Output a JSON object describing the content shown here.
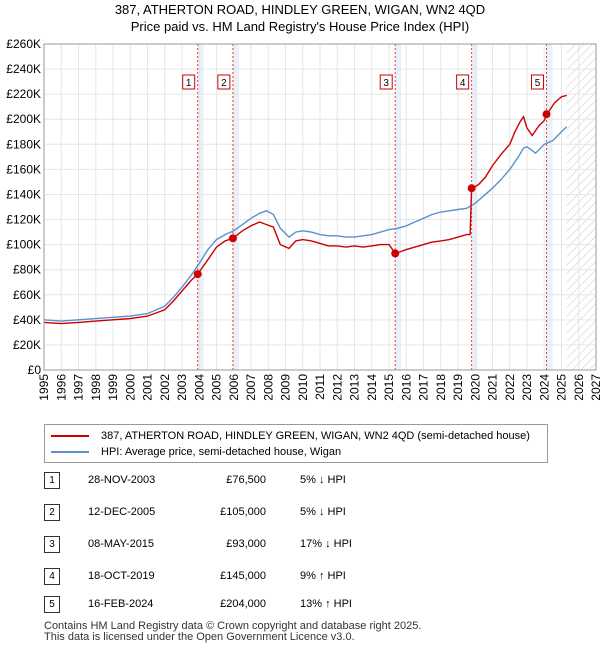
{
  "title_line1": "387, ATHERTON ROAD, HINDLEY GREEN, WIGAN, WN2 4QD",
  "title_line2": "Price paid vs. HM Land Registry's House Price Index (HPI)",
  "chart_data": {
    "type": "line",
    "x_range": [
      1995,
      2027
    ],
    "ylim": [
      0,
      260000
    ],
    "y_ticks": [
      0,
      20000,
      40000,
      60000,
      80000,
      100000,
      120000,
      140000,
      160000,
      180000,
      200000,
      220000,
      240000,
      260000
    ],
    "y_tick_labels": [
      "£0",
      "£20K",
      "£40K",
      "£60K",
      "£80K",
      "£100K",
      "£120K",
      "£140K",
      "£160K",
      "£180K",
      "£200K",
      "£220K",
      "£240K",
      "£260K"
    ],
    "x_ticks": [
      1995,
      1996,
      1997,
      1998,
      1999,
      2000,
      2001,
      2002,
      2003,
      2004,
      2005,
      2006,
      2007,
      2008,
      2009,
      2010,
      2011,
      2012,
      2013,
      2014,
      2015,
      2016,
      2017,
      2018,
      2019,
      2020,
      2021,
      2022,
      2023,
      2024,
      2025,
      2026,
      2027
    ],
    "forecast_start": 2025.3,
    "colors": {
      "property": "#cc0000",
      "hpi": "#5b8fd0",
      "shade": "#e8eef8",
      "marker_line": "#dd4444"
    },
    "series": [
      {
        "name": "387, ATHERTON ROAD, HINDLEY GREEN, WIGAN, WN2 4QD (semi-detached house)",
        "x": [
          1995.0,
          1996.0,
          1997.0,
          1998.0,
          1999.0,
          2000.0,
          2001.0,
          2002.0,
          2002.5,
          2003.0,
          2003.5,
          2003.91,
          2004.5,
          2005.0,
          2005.5,
          2005.95,
          2006.5,
          2007.0,
          2007.5,
          2007.9,
          2008.3,
          2008.7,
          2009.2,
          2009.6,
          2010.0,
          2010.5,
          2011.0,
          2011.5,
          2012.0,
          2012.5,
          2013.0,
          2013.5,
          2014.0,
          2014.5,
          2015.0,
          2015.36,
          2015.6,
          2016.0,
          2016.5,
          2017.0,
          2017.5,
          2018.0,
          2018.5,
          2019.0,
          2019.5,
          2019.7,
          2019.79,
          2019.85,
          2020.2,
          2020.6,
          2021.0,
          2021.5,
          2022.0,
          2022.3,
          2022.6,
          2022.8,
          2023.0,
          2023.3,
          2023.7,
          2024.0,
          2024.13,
          2024.3,
          2024.6,
          2025.0,
          2025.3
        ],
        "y": [
          38000,
          37000,
          38000,
          39000,
          40000,
          41000,
          43000,
          48000,
          55000,
          63000,
          71000,
          76500,
          88000,
          98000,
          103000,
          105000,
          111000,
          115000,
          118000,
          116000,
          114000,
          100000,
          97000,
          103000,
          104000,
          103000,
          101000,
          99000,
          99000,
          98000,
          99000,
          98000,
          99000,
          100000,
          100000,
          93000,
          94000,
          96000,
          98000,
          100000,
          102000,
          103000,
          104000,
          106000,
          108000,
          108000,
          145000,
          145000,
          148000,
          154000,
          163000,
          172000,
          180000,
          190000,
          198000,
          202000,
          193000,
          187000,
          195000,
          199000,
          204000,
          207000,
          213000,
          218000,
          219000
        ]
      },
      {
        "name": "HPI: Average price, semi-detached house, Wigan",
        "x": [
          1995.0,
          1996.0,
          1997.0,
          1998.0,
          1999.0,
          2000.0,
          2001.0,
          2002.0,
          2002.5,
          2003.0,
          2003.5,
          2004.0,
          2004.5,
          2005.0,
          2005.5,
          2006.0,
          2006.5,
          2007.0,
          2007.5,
          2007.9,
          2008.3,
          2008.7,
          2009.2,
          2009.6,
          2010.0,
          2010.5,
          2011.0,
          2011.5,
          2012.0,
          2012.5,
          2013.0,
          2013.5,
          2014.0,
          2014.5,
          2015.0,
          2015.5,
          2016.0,
          2016.5,
          2017.0,
          2017.5,
          2018.0,
          2018.5,
          2019.0,
          2019.5,
          2020.0,
          2020.5,
          2021.0,
          2021.5,
          2022.0,
          2022.5,
          2022.8,
          2023.0,
          2023.5,
          2024.0,
          2024.5,
          2025.0,
          2025.3
        ],
        "y": [
          40000,
          39000,
          40000,
          41000,
          42000,
          43000,
          45000,
          51000,
          58000,
          66000,
          75000,
          85000,
          96000,
          104000,
          108000,
          111000,
          116000,
          121000,
          125000,
          127000,
          124000,
          113000,
          106000,
          110000,
          111000,
          110000,
          108000,
          107000,
          107000,
          106000,
          106000,
          107000,
          108000,
          110000,
          112000,
          113000,
          115000,
          118000,
          121000,
          124000,
          126000,
          127000,
          128000,
          129000,
          133000,
          139000,
          145000,
          152000,
          160000,
          170000,
          177000,
          178000,
          173000,
          180000,
          183000,
          190000,
          194000
        ]
      }
    ],
    "transactions": [
      {
        "label": "1",
        "x": 2003.91,
        "y": 76500
      },
      {
        "label": "2",
        "x": 2005.95,
        "y": 105000
      },
      {
        "label": "3",
        "x": 2015.36,
        "y": 93000
      },
      {
        "label": "4",
        "x": 2019.79,
        "y": 145000
      },
      {
        "label": "5",
        "x": 2024.13,
        "y": 204000
      }
    ]
  },
  "legend": {
    "property_label": "387, ATHERTON ROAD, HINDLEY GREEN, WIGAN, WN2 4QD (semi-detached house)",
    "hpi_label": "HPI: Average price, semi-detached house, Wigan"
  },
  "sales": [
    {
      "num": "1",
      "date": "28-NOV-2003",
      "price": "£76,500",
      "hpi": "5% ↓ HPI"
    },
    {
      "num": "2",
      "date": "12-DEC-2005",
      "price": "£105,000",
      "hpi": "5% ↓ HPI"
    },
    {
      "num": "3",
      "date": "08-MAY-2015",
      "price": "£93,000",
      "hpi": "17% ↓ HPI"
    },
    {
      "num": "4",
      "date": "18-OCT-2019",
      "price": "£145,000",
      "hpi": "9% ↑ HPI"
    },
    {
      "num": "5",
      "date": "16-FEB-2024",
      "price": "£204,000",
      "hpi": "13% ↑ HPI"
    }
  ],
  "footer_line1": "Contains HM Land Registry data © Crown copyright and database right 2025.",
  "footer_line2": "This data is licensed under the Open Government Licence v3.0."
}
